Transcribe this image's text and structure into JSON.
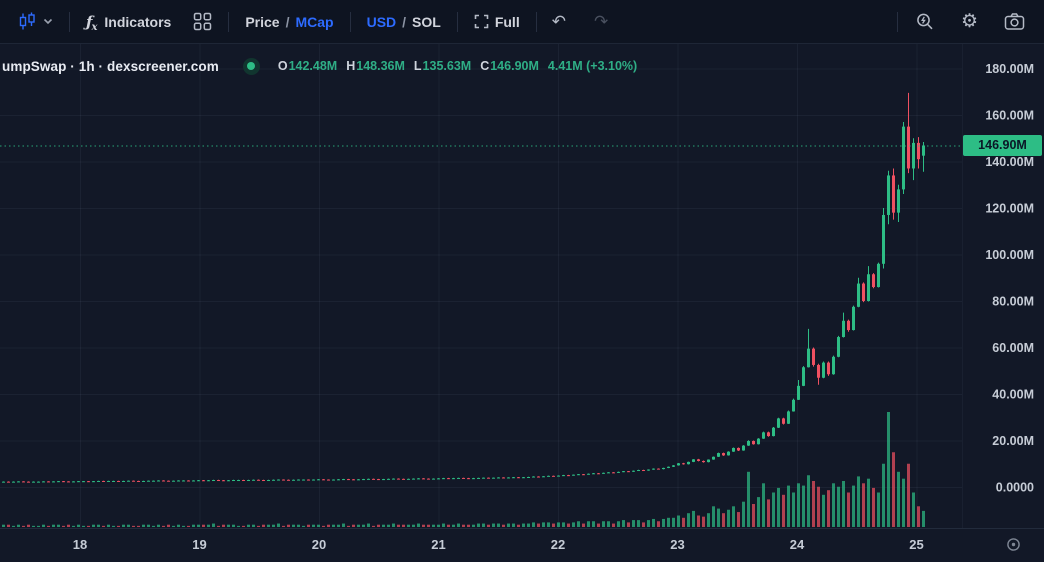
{
  "toolbar": {
    "indicators_label": "Indicators",
    "price_label": "Price",
    "mcap_label": "MCap",
    "usd_label": "USD",
    "sol_label": "SOL",
    "full_label": "Full",
    "slash": "/",
    "icons": {
      "undo": "↶",
      "redo": "↷",
      "gear": "⚙"
    }
  },
  "header": {
    "symbol_text": "umpSwap · 1h · dexscreener.com",
    "ohlc": {
      "o_label": "O",
      "o_value": "142.48M",
      "h_label": "H",
      "h_value": "148.36M",
      "l_label": "L",
      "l_value": "135.63M",
      "c_label": "C",
      "c_value": "146.90M",
      "change": "4.41M (+3.10%)"
    }
  },
  "colors": {
    "up": "#2dbd85",
    "down": "#ef5061",
    "accent_blue": "#2d6bff",
    "badge_bg": "#2dbd85",
    "grid": "rgba(150,166,201,0.07)",
    "axis_text": "#c6ccd6",
    "axis_line": "#222b3c"
  },
  "chart_data": {
    "type": "candlestick",
    "title": "umpSwap · 1h · dexscreener.com",
    "unit": "market cap, millions USD",
    "interval": "1h",
    "legend": "none",
    "grid": "on",
    "x_axis": {
      "note": "day of month",
      "tick_labels": [
        "18",
        "19",
        "20",
        "21",
        "22",
        "23",
        "24",
        "25"
      ]
    },
    "y_axis": {
      "tick_labels": [
        "180.00M",
        "160.00M",
        "140.00M",
        "120.00M",
        "100.00M",
        "80.00M",
        "60.00M",
        "40.00M",
        "20.00M",
        "0.0000"
      ],
      "tick_values": [
        180,
        160,
        140,
        120,
        100,
        80,
        60,
        40,
        20,
        0
      ],
      "ylim": [
        0,
        190
      ]
    },
    "last_price": {
      "label": "146.90M",
      "value": 146.9
    },
    "current_candle": {
      "open": 142.48,
      "high": 148.36,
      "low": 135.63,
      "close": 146.9,
      "change": "+3.10%"
    },
    "candles_format": "[open, high, low, close, volume_relative_0_100]",
    "candles": [
      [
        2.3,
        2.4,
        2.2,
        2.3,
        2
      ],
      [
        2.3,
        2.4,
        2.1,
        2.2,
        2
      ],
      [
        2.2,
        2.4,
        2.1,
        2.3,
        1
      ],
      [
        2.3,
        2.5,
        2.2,
        2.4,
        2
      ],
      [
        2.4,
        2.5,
        2.2,
        2.3,
        1
      ],
      [
        2.3,
        2.4,
        2.1,
        2.2,
        2
      ],
      [
        2.2,
        2.4,
        2.1,
        2.3,
        1
      ],
      [
        2.3,
        2.4,
        2.2,
        2.3,
        1
      ],
      [
        2.3,
        2.5,
        2.2,
        2.4,
        2
      ],
      [
        2.4,
        2.5,
        2.2,
        2.3,
        1
      ],
      [
        2.3,
        2.5,
        2.2,
        2.4,
        2
      ],
      [
        2.4,
        2.6,
        2.3,
        2.5,
        2
      ],
      [
        2.5,
        2.6,
        2.3,
        2.4,
        1
      ],
      [
        2.4,
        2.5,
        2.2,
        2.3,
        2
      ],
      [
        2.3,
        2.5,
        2.2,
        2.4,
        1
      ],
      [
        2.4,
        2.6,
        2.3,
        2.5,
        2
      ],
      [
        2.5,
        2.6,
        2.4,
        2.5,
        1
      ],
      [
        2.5,
        2.6,
        2.3,
        2.4,
        1
      ],
      [
        2.4,
        2.6,
        2.3,
        2.5,
        2
      ],
      [
        2.5,
        2.7,
        2.4,
        2.6,
        2
      ],
      [
        2.6,
        2.7,
        2.4,
        2.5,
        1
      ],
      [
        2.5,
        2.7,
        2.4,
        2.6,
        2
      ],
      [
        2.6,
        2.7,
        2.5,
        2.6,
        1
      ],
      [
        2.6,
        2.7,
        2.4,
        2.5,
        1
      ],
      [
        2.5,
        2.7,
        2.4,
        2.6,
        2
      ],
      [
        2.6,
        2.8,
        2.5,
        2.7,
        2
      ],
      [
        2.7,
        2.8,
        2.5,
        2.6,
        1
      ],
      [
        2.6,
        2.7,
        2.4,
        2.5,
        1
      ],
      [
        2.5,
        2.7,
        2.4,
        2.6,
        2
      ],
      [
        2.6,
        2.8,
        2.5,
        2.7,
        2
      ],
      [
        2.7,
        2.8,
        2.6,
        2.7,
        1
      ],
      [
        2.7,
        2.9,
        2.6,
        2.8,
        2
      ],
      [
        2.8,
        2.9,
        2.6,
        2.7,
        1
      ],
      [
        2.7,
        2.8,
        2.5,
        2.6,
        2
      ],
      [
        2.6,
        2.8,
        2.5,
        2.7,
        1
      ],
      [
        2.7,
        2.9,
        2.6,
        2.8,
        2
      ],
      [
        2.8,
        2.9,
        2.7,
        2.8,
        1
      ],
      [
        2.8,
        2.9,
        2.6,
        2.7,
        1
      ],
      [
        2.7,
        2.9,
        2.6,
        2.8,
        2
      ],
      [
        2.8,
        3.0,
        2.7,
        2.9,
        2
      ],
      [
        2.9,
        3.0,
        2.7,
        2.8,
        2
      ],
      [
        2.8,
        3.0,
        2.7,
        2.9,
        2
      ],
      [
        2.9,
        3.1,
        2.8,
        3.0,
        3
      ],
      [
        3.0,
        3.1,
        2.8,
        2.9,
        1
      ],
      [
        2.9,
        3.0,
        2.7,
        2.8,
        2
      ],
      [
        2.8,
        3.0,
        2.7,
        2.9,
        2
      ],
      [
        2.9,
        3.1,
        2.8,
        3.0,
        2
      ],
      [
        3.0,
        3.1,
        2.9,
        3.0,
        1
      ],
      [
        3.0,
        3.1,
        2.8,
        2.9,
        1
      ],
      [
        2.9,
        3.1,
        2.8,
        3.0,
        2
      ],
      [
        3.0,
        3.2,
        2.9,
        3.1,
        2
      ],
      [
        3.1,
        3.2,
        2.9,
        3.0,
        1
      ],
      [
        3.0,
        3.1,
        2.8,
        2.9,
        2
      ],
      [
        2.9,
        3.1,
        2.8,
        3.0,
        2
      ],
      [
        3.0,
        3.2,
        2.9,
        3.1,
        2
      ],
      [
        3.1,
        3.3,
        3.0,
        3.2,
        3
      ],
      [
        3.2,
        3.3,
        3.0,
        3.1,
        1
      ],
      [
        3.1,
        3.2,
        2.9,
        3.0,
        2
      ],
      [
        3.0,
        3.2,
        2.9,
        3.1,
        2
      ],
      [
        3.1,
        3.3,
        3.0,
        3.2,
        2
      ],
      [
        3.2,
        3.3,
        3.1,
        3.2,
        1
      ],
      [
        3.2,
        3.3,
        3.0,
        3.1,
        2
      ],
      [
        3.1,
        3.3,
        3.0,
        3.2,
        2
      ],
      [
        3.2,
        3.4,
        3.1,
        3.3,
        2
      ],
      [
        3.3,
        3.4,
        3.1,
        3.2,
        1
      ],
      [
        3.2,
        3.3,
        3.0,
        3.1,
        2
      ],
      [
        3.1,
        3.3,
        3.0,
        3.2,
        2
      ],
      [
        3.2,
        3.4,
        3.1,
        3.3,
        2
      ],
      [
        3.3,
        3.5,
        3.2,
        3.4,
        3
      ],
      [
        3.4,
        3.5,
        3.2,
        3.3,
        1
      ],
      [
        3.3,
        3.4,
        3.1,
        3.2,
        2
      ],
      [
        3.2,
        3.4,
        3.1,
        3.3,
        2
      ],
      [
        3.3,
        3.5,
        3.2,
        3.4,
        2
      ],
      [
        3.4,
        3.6,
        3.3,
        3.5,
        3
      ],
      [
        3.5,
        3.6,
        3.3,
        3.4,
        1
      ],
      [
        3.4,
        3.5,
        3.2,
        3.3,
        2
      ],
      [
        3.3,
        3.5,
        3.2,
        3.4,
        2
      ],
      [
        3.4,
        3.6,
        3.3,
        3.5,
        2
      ],
      [
        3.5,
        3.7,
        3.4,
        3.6,
        3
      ],
      [
        3.6,
        3.7,
        3.4,
        3.5,
        2
      ],
      [
        3.5,
        3.6,
        3.3,
        3.4,
        2
      ],
      [
        3.4,
        3.6,
        3.3,
        3.5,
        2
      ],
      [
        3.5,
        3.7,
        3.4,
        3.6,
        2
      ],
      [
        3.6,
        3.8,
        3.5,
        3.7,
        3
      ],
      [
        3.7,
        3.8,
        3.5,
        3.6,
        2
      ],
      [
        3.6,
        3.7,
        3.4,
        3.5,
        2
      ],
      [
        3.5,
        3.7,
        3.4,
        3.6,
        2
      ],
      [
        3.6,
        3.8,
        3.5,
        3.7,
        2
      ],
      [
        3.7,
        3.9,
        3.6,
        3.8,
        3
      ],
      [
        3.8,
        3.9,
        3.6,
        3.7,
        2
      ],
      [
        3.7,
        3.9,
        3.6,
        3.8,
        2
      ],
      [
        3.8,
        4.0,
        3.7,
        3.9,
        3
      ],
      [
        3.9,
        4.0,
        3.7,
        3.8,
        2
      ],
      [
        3.8,
        3.9,
        3.6,
        3.7,
        2
      ],
      [
        3.7,
        3.9,
        3.6,
        3.8,
        2
      ],
      [
        3.8,
        4.0,
        3.7,
        3.9,
        3
      ],
      [
        3.9,
        4.1,
        3.8,
        4.0,
        3
      ],
      [
        4.0,
        4.1,
        3.8,
        3.9,
        2
      ],
      [
        3.9,
        4.1,
        3.8,
        4.0,
        3
      ],
      [
        4.0,
        4.2,
        3.9,
        4.1,
        3
      ],
      [
        4.1,
        4.2,
        3.9,
        4.0,
        2
      ],
      [
        4.0,
        4.2,
        3.9,
        4.1,
        3
      ],
      [
        4.1,
        4.3,
        4.0,
        4.2,
        3
      ],
      [
        4.2,
        4.3,
        4.0,
        4.1,
        2
      ],
      [
        4.1,
        4.3,
        4.0,
        4.2,
        3
      ],
      [
        4.2,
        4.4,
        4.1,
        4.3,
        3
      ],
      [
        4.3,
        4.6,
        4.2,
        4.5,
        4
      ],
      [
        4.5,
        4.6,
        4.3,
        4.4,
        3
      ],
      [
        4.4,
        4.7,
        4.3,
        4.6,
        4
      ],
      [
        4.6,
        4.9,
        4.5,
        4.8,
        4
      ],
      [
        4.8,
        4.9,
        4.6,
        4.7,
        3
      ],
      [
        4.7,
        5.0,
        4.6,
        4.9,
        4
      ],
      [
        4.9,
        5.2,
        4.8,
        5.1,
        4
      ],
      [
        5.1,
        5.2,
        4.9,
        5.0,
        3
      ],
      [
        5.0,
        5.4,
        4.9,
        5.3,
        4
      ],
      [
        5.3,
        5.6,
        5.2,
        5.5,
        5
      ],
      [
        5.5,
        5.6,
        5.3,
        5.4,
        3
      ],
      [
        5.4,
        5.8,
        5.3,
        5.7,
        5
      ],
      [
        5.7,
        6.0,
        5.6,
        5.9,
        5
      ],
      [
        5.9,
        6.0,
        5.7,
        5.8,
        3
      ],
      [
        5.8,
        6.2,
        5.7,
        6.1,
        5
      ],
      [
        6.1,
        6.4,
        6.0,
        6.3,
        5
      ],
      [
        6.3,
        6.4,
        6.1,
        6.2,
        3
      ],
      [
        6.2,
        6.6,
        6.1,
        6.5,
        5
      ],
      [
        6.5,
        6.9,
        6.4,
        6.8,
        6
      ],
      [
        6.8,
        6.9,
        6.5,
        6.6,
        4
      ],
      [
        6.6,
        7.1,
        6.5,
        7.0,
        6
      ],
      [
        7.0,
        7.4,
        6.9,
        7.3,
        6
      ],
      [
        7.3,
        7.4,
        7.0,
        7.1,
        4
      ],
      [
        7.1,
        7.6,
        7.0,
        7.5,
        6
      ],
      [
        7.5,
        8.0,
        7.4,
        7.9,
        7
      ],
      [
        7.9,
        8.0,
        7.6,
        7.7,
        5
      ],
      [
        7.7,
        8.3,
        7.6,
        8.2,
        7
      ],
      [
        8.2,
        8.8,
        8.1,
        8.7,
        8
      ],
      [
        8.7,
        9.4,
        8.6,
        9.3,
        8
      ],
      [
        9.3,
        10.3,
        9.2,
        10.2,
        10
      ],
      [
        10.2,
        10.4,
        9.6,
        9.8,
        8
      ],
      [
        9.8,
        10.9,
        9.7,
        10.8,
        12
      ],
      [
        10.8,
        12.0,
        10.7,
        11.9,
        14
      ],
      [
        11.9,
        12.1,
        11.0,
        11.2,
        10
      ],
      [
        11.2,
        11.4,
        10.5,
        10.7,
        9
      ],
      [
        10.7,
        11.9,
        10.6,
        11.8,
        12
      ],
      [
        11.8,
        13.1,
        11.7,
        13.0,
        18
      ],
      [
        13.0,
        14.8,
        12.9,
        14.6,
        16
      ],
      [
        14.6,
        14.8,
        13.4,
        13.6,
        12
      ],
      [
        13.6,
        15.4,
        13.5,
        15.2,
        15
      ],
      [
        15.2,
        17.0,
        15.1,
        16.8,
        18
      ],
      [
        16.8,
        17.0,
        15.5,
        15.7,
        13
      ],
      [
        15.7,
        18.0,
        15.6,
        17.8,
        22
      ],
      [
        17.8,
        20.1,
        17.7,
        19.8,
        48
      ],
      [
        19.8,
        20.0,
        18.2,
        18.4,
        20
      ],
      [
        18.4,
        21.0,
        18.3,
        20.8,
        26
      ],
      [
        20.8,
        23.8,
        20.7,
        23.5,
        38
      ],
      [
        23.5,
        23.8,
        21.6,
        21.9,
        24
      ],
      [
        21.9,
        25.8,
        21.8,
        25.5,
        30
      ],
      [
        25.5,
        29.8,
        25.4,
        29.5,
        34
      ],
      [
        29.5,
        29.8,
        26.9,
        27.2,
        28
      ],
      [
        27.2,
        32.9,
        27.1,
        32.5,
        36
      ],
      [
        32.5,
        38.0,
        32.4,
        37.5,
        30
      ],
      [
        37.5,
        46.0,
        37.4,
        43.5,
        38
      ],
      [
        43.5,
        52.0,
        43.4,
        51.5,
        36
      ],
      [
        51.5,
        68.0,
        51.4,
        59.5,
        45
      ],
      [
        59.5,
        60.0,
        51.8,
        52.5,
        40
      ],
      [
        52.5,
        53.0,
        44.0,
        47.0,
        35
      ],
      [
        47.0,
        54.0,
        46.8,
        53.5,
        28
      ],
      [
        53.5,
        54.0,
        47.8,
        48.5,
        32
      ],
      [
        48.5,
        56.5,
        48.3,
        56.0,
        38
      ],
      [
        56.0,
        65.0,
        55.8,
        64.5,
        35
      ],
      [
        64.5,
        75.0,
        64.3,
        71.5,
        40
      ],
      [
        71.5,
        72.0,
        66.8,
        67.5,
        30
      ],
      [
        67.5,
        78.0,
        67.3,
        77.5,
        36
      ],
      [
        77.5,
        90.0,
        77.3,
        87.5,
        44
      ],
      [
        87.5,
        88.0,
        79.5,
        80.0,
        38
      ],
      [
        80.0,
        95.0,
        79.8,
        91.5,
        42
      ],
      [
        91.5,
        92.0,
        85.5,
        86.0,
        34
      ],
      [
        86.0,
        96.5,
        85.8,
        96.0,
        30
      ],
      [
        96.0,
        120.0,
        94.0,
        117.0,
        55
      ],
      [
        117.0,
        136.0,
        113.0,
        134.0,
        100
      ],
      [
        134.0,
        137.0,
        115.0,
        118.0,
        65
      ],
      [
        118.0,
        130.0,
        114.0,
        128.0,
        48
      ],
      [
        128.0,
        157.0,
        126.0,
        155.0,
        42
      ],
      [
        155.0,
        169.5,
        135.0,
        137.0,
        55
      ],
      [
        137.0,
        150.0,
        132.0,
        148.0,
        30
      ],
      [
        148.0,
        150.5,
        137.0,
        141.0,
        18
      ],
      [
        142.5,
        148.4,
        135.6,
        146.9,
        14
      ]
    ]
  }
}
